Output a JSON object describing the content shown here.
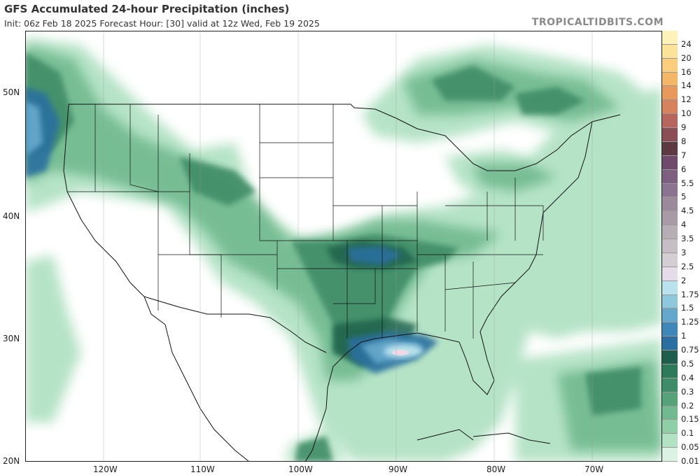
{
  "header": {
    "title": "GFS Accumulated 24-hour Precipitation (inches)",
    "subtitle": "Init: 06z Feb 18 2025   Forecast Hour: [30]   valid at 12z Wed, Feb 19 2025",
    "watermark": "TROPICALTIDBITS.COM"
  },
  "map": {
    "projection": "equirectangular",
    "region": "Contiguous United States, southern Canada, northern Mexico, Gulf of Mexico, western Atlantic",
    "lon_range": [
      -128.5,
      -62.5
    ],
    "lat_range": [
      20,
      54
    ],
    "background_color": "#ffffff",
    "border_color": "#111111",
    "highlight": {
      "label": "Max precipitation near Mississippi coast / Gulf",
      "color": "#f0d8e6"
    },
    "lat_ticks": [
      "50N",
      "40N",
      "30N",
      "20N"
    ],
    "lon_ticks": [
      "120W",
      "110W",
      "100W",
      "90W",
      "80W",
      "70W"
    ]
  },
  "colorbar": {
    "levels": [
      {
        "label": "24",
        "color": "#fdf3b8"
      },
      {
        "label": "20",
        "color": "#fbe49a"
      },
      {
        "label": "16",
        "color": "#f9cf7d"
      },
      {
        "label": "14",
        "color": "#f4b768"
      },
      {
        "label": "12",
        "color": "#e89a5d"
      },
      {
        "label": "10",
        "color": "#d6825a"
      },
      {
        "label": "9",
        "color": "#b6665c"
      },
      {
        "label": "8",
        "color": "#8c4e55"
      },
      {
        "label": "7",
        "color": "#5e3a42"
      },
      {
        "label": "6",
        "color": "#6e4a6b"
      },
      {
        "label": "5.5",
        "color": "#7f5f80"
      },
      {
        "label": "5",
        "color": "#8b7490"
      },
      {
        "label": "4.5",
        "color": "#9a8a9c"
      },
      {
        "label": "4",
        "color": "#a89ba6"
      },
      {
        "label": "3.5",
        "color": "#b7adb4"
      },
      {
        "label": "3",
        "color": "#c6bec4"
      },
      {
        "label": "2.5",
        "color": "#d4cdd3"
      },
      {
        "label": "2",
        "color": "#e6dbe8"
      },
      {
        "label": "1.75",
        "color": "#b9e3ec"
      },
      {
        "label": "1.5",
        "color": "#8fc8dd"
      },
      {
        "label": "1.25",
        "color": "#65a7cb"
      },
      {
        "label": "1",
        "color": "#3f86b9"
      },
      {
        "label": "0.75",
        "color": "#2a6f9f"
      },
      {
        "label": "0.5",
        "color": "#1e5e4a"
      },
      {
        "label": "0.4",
        "color": "#2c7a5a"
      },
      {
        "label": "0.3",
        "color": "#3f8d68"
      },
      {
        "label": "0.2",
        "color": "#56a37a"
      },
      {
        "label": "0.15",
        "color": "#71b98f"
      },
      {
        "label": "0.1",
        "color": "#8fcfa6"
      },
      {
        "label": "0.05",
        "color": "#b2e2c4"
      },
      {
        "label": "0.01",
        "color": "#dcf3e3"
      }
    ]
  }
}
